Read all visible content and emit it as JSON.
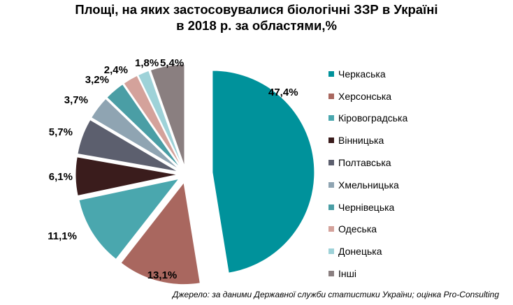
{
  "title_line1": "Площі, на яких застосовувалися біологічні ЗЗР в Україні",
  "title_line2": "в 2018 р. за областями,%",
  "source": "Джерело: за даними Державної служби статистики України; оцінка Pro-Consulting",
  "chart_data": {
    "type": "pie",
    "title": "Площі, на яких застосовувалися біологічні ЗЗР в Україні в 2018 р. за областями,%",
    "legend_position": "right",
    "exploded": true,
    "slices": [
      {
        "name": "Черкаська",
        "value": 47.4,
        "label": "47,4%",
        "color": "#00929b"
      },
      {
        "name": "Херсонська",
        "value": 13.1,
        "label": "13,1%",
        "color": "#a9675f"
      },
      {
        "name": "Кіровоградська",
        "value": 11.1,
        "label": "11,1%",
        "color": "#4aa7ae"
      },
      {
        "name": "Вінницька",
        "value": 6.1,
        "label": "6,1%",
        "color": "#3a1c1c"
      },
      {
        "name": "Полтавська",
        "value": 5.7,
        "label": "5,7%",
        "color": "#5c5f6e"
      },
      {
        "name": "Хмельницька",
        "value": 3.7,
        "label": "3,7%",
        "color": "#8fa4b2"
      },
      {
        "name": "Чернівецька",
        "value": 3.2,
        "label": "3,2%",
        "color": "#4a9ea5"
      },
      {
        "name": "Одеська",
        "value": 2.4,
        "label": "2,4%",
        "color": "#d4a29b"
      },
      {
        "name": "Донецька",
        "value": 1.8,
        "label": "1,8%",
        "color": "#9ed2d8"
      },
      {
        "name": "Інші",
        "value": 5.4,
        "label": "5,4%",
        "color": "#8a7f80"
      }
    ]
  }
}
